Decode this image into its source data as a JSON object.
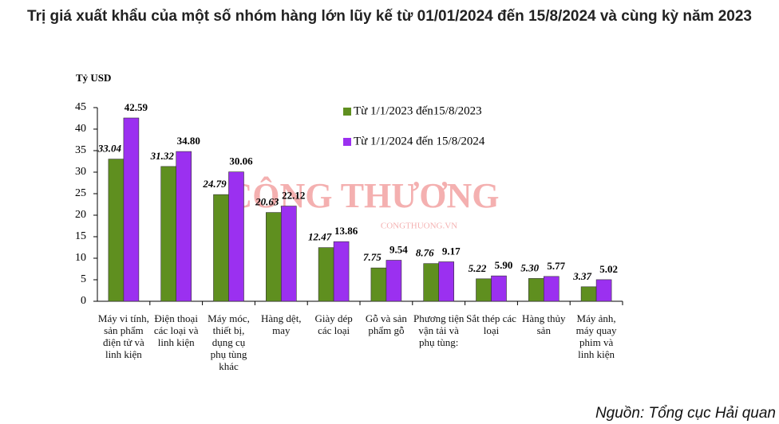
{
  "chart_data": {
    "type": "bar",
    "title": "Trị giá xuất khẩu của một số nhóm hàng lớn lũy kế từ 01/01/2024 đến 15/8/2024 và cùng kỳ năm 2023",
    "y_label": "Tỷ USD",
    "source": "Nguồn: Tổng cục Hải quan",
    "watermark": [
      "CÔNG THƯƠNG",
      "CONGTHUONG.VN"
    ],
    "categories": [
      "Máy vi tính, sản phẩm điện tử và linh kiện",
      "Điện thoại các loại và linh kiện",
      "Máy móc, thiết bị, dụng cụ phụ tùng khác",
      "Hàng dệt, may",
      "Giày dép các loại",
      "Gỗ và sản phẩm gỗ",
      "Phương tiện vận tải và phụ tùng:",
      "Sắt thép các loại",
      "Hàng thủy sản",
      "Máy ảnh, máy quay phim và linh kiện"
    ],
    "series": [
      {
        "name": "Từ 1/1/2023 đến15/8/2023",
        "color": "#5f8f1f",
        "values": [
          33.04,
          31.32,
          24.79,
          20.63,
          12.47,
          7.75,
          8.76,
          5.22,
          5.3,
          3.37
        ],
        "value_labels": [
          "33.04",
          "31.32",
          "24.79",
          "20.63",
          "12.47",
          "7.75",
          "8.76",
          "5.22",
          "5.30",
          "3.37"
        ]
      },
      {
        "name": "Từ 1/1/2024 đến 15/8/2024",
        "color": "#9b30f0",
        "values": [
          42.59,
          34.8,
          30.06,
          22.12,
          13.86,
          9.54,
          9.17,
          5.9,
          5.77,
          5.02
        ],
        "value_labels": [
          "42.59",
          "34.80",
          "30.06",
          "22.12",
          "13.86",
          "9.54",
          "9.17",
          "5.90",
          "5.77",
          "5.02"
        ]
      }
    ],
    "ylim": [
      0,
      45
    ],
    "yticks": [
      0,
      5,
      10,
      15,
      20,
      25,
      30,
      35,
      40,
      45
    ],
    "grid": false
  }
}
